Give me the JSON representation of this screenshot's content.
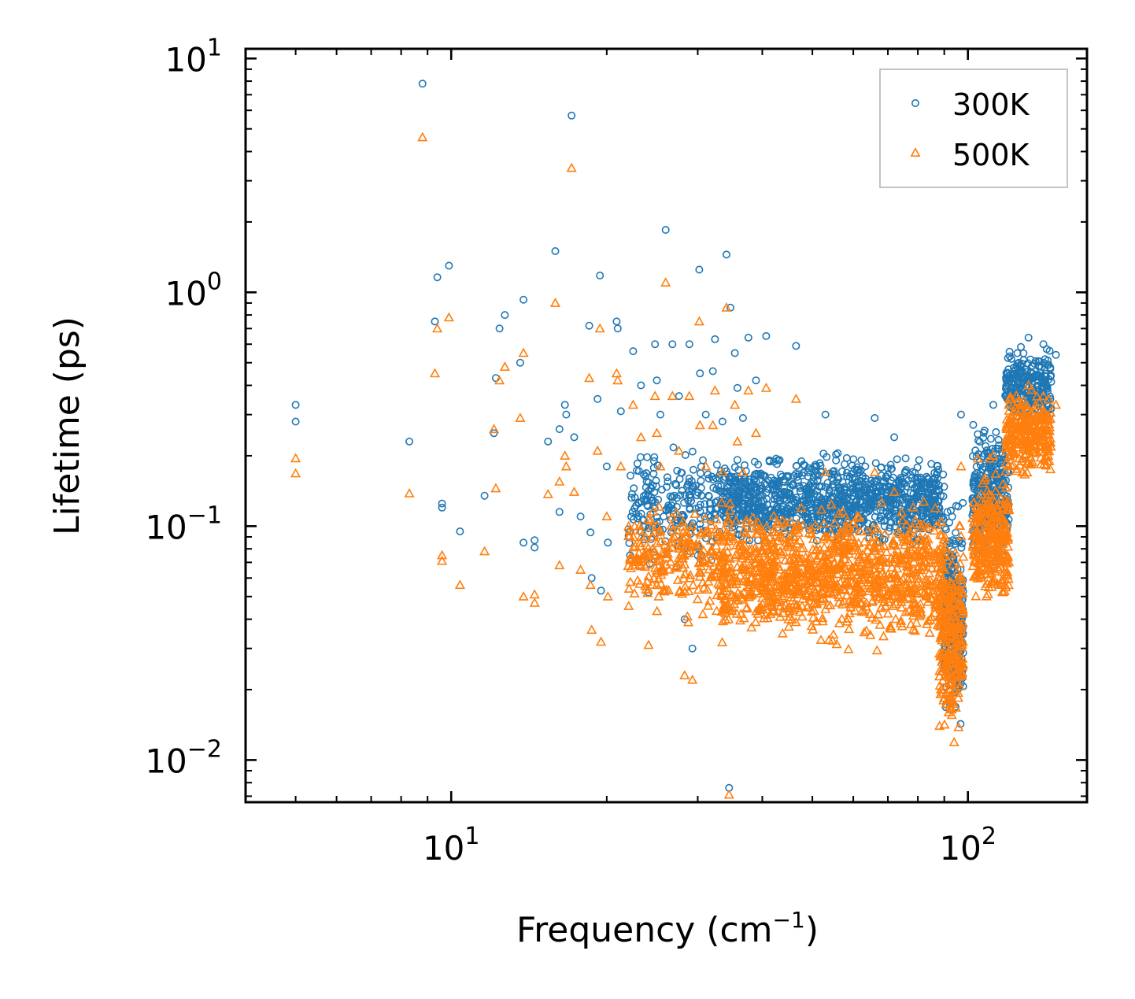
{
  "chart_data": {
    "type": "scatter",
    "xlabel": "Frequency (cm⁻¹)",
    "xlabel_parts": {
      "base": "Frequency (cm",
      "sup": "−1",
      "close": ")"
    },
    "ylabel": "Lifetime (ps)",
    "xscale": "log",
    "yscale": "log",
    "xlim": [
      4.0,
      170.0
    ],
    "ylim": [
      0.0066,
      11.0
    ],
    "xticks": [
      {
        "value": 10,
        "base": "10",
        "exp": "1"
      },
      {
        "value": 100,
        "base": "10",
        "exp": "2"
      }
    ],
    "yticks": [
      {
        "value": 0.01,
        "base": "10",
        "exp": "−2"
      },
      {
        "value": 0.1,
        "base": "10",
        "exp": "−1"
      },
      {
        "value": 1,
        "base": "10",
        "exp": "0"
      },
      {
        "value": 10,
        "base": "10",
        "exp": "1"
      }
    ],
    "legend_position": "top-right",
    "series": [
      {
        "name": "300K",
        "marker": "circle-open",
        "color": "#1f77b4",
        "points": [
          [
            5.0,
            0.33
          ],
          [
            5.0,
            0.28
          ],
          [
            8.3,
            0.23
          ],
          [
            8.8,
            7.8
          ],
          [
            9.3,
            0.75
          ],
          [
            9.4,
            1.16
          ],
          [
            9.6,
            0.125
          ],
          [
            9.6,
            0.12
          ],
          [
            9.9,
            1.3
          ],
          [
            10.4,
            0.095
          ],
          [
            11.6,
            0.135
          ],
          [
            12.1,
            0.25
          ],
          [
            12.2,
            0.43
          ],
          [
            12.4,
            0.7
          ],
          [
            12.7,
            0.8
          ],
          [
            13.6,
            0.5
          ],
          [
            13.8,
            0.93
          ],
          [
            13.8,
            0.085
          ],
          [
            14.5,
            0.087
          ],
          [
            14.5,
            0.081
          ],
          [
            15.4,
            0.23
          ],
          [
            15.9,
            1.5
          ],
          [
            16.2,
            0.26
          ],
          [
            16.2,
            0.115
          ],
          [
            16.6,
            0.33
          ],
          [
            16.7,
            0.3
          ],
          [
            17.1,
            5.7
          ],
          [
            17.3,
            0.24
          ],
          [
            17.8,
            0.11
          ],
          [
            18.5,
            0.72
          ],
          [
            18.6,
            0.094
          ],
          [
            18.7,
            0.06
          ],
          [
            19.2,
            0.35
          ],
          [
            19.4,
            1.18
          ],
          [
            19.5,
            0.053
          ],
          [
            20.0,
            0.18
          ],
          [
            20.1,
            0.085
          ],
          [
            20.9,
            0.75
          ],
          [
            21.0,
            0.7
          ],
          [
            21.3,
            0.31
          ],
          [
            22.5,
            0.56
          ],
          [
            23.3,
            0.4
          ],
          [
            24.1,
            0.052
          ],
          [
            24.8,
            0.6
          ],
          [
            25.0,
            0.42
          ],
          [
            25.4,
            0.3
          ],
          [
            26.0,
            1.85
          ],
          [
            26.8,
            0.6
          ],
          [
            27.6,
            0.36
          ],
          [
            28.3,
            0.04
          ],
          [
            28.9,
            0.6
          ],
          [
            29.3,
            0.03
          ],
          [
            30.2,
            1.25
          ],
          [
            30.3,
            0.45
          ],
          [
            30.7,
            0.07
          ],
          [
            31.1,
            0.3
          ],
          [
            32.1,
            0.46
          ],
          [
            32.4,
            0.63
          ],
          [
            33.5,
            0.28
          ],
          [
            34.1,
            1.45
          ],
          [
            34.5,
            0.0076
          ],
          [
            34.7,
            0.86
          ],
          [
            35.4,
            0.55
          ],
          [
            35.8,
            0.39
          ],
          [
            36.7,
            0.29
          ],
          [
            37.6,
            0.64
          ],
          [
            38.9,
            0.42
          ],
          [
            40.7,
            0.65
          ],
          [
            46.5,
            0.59
          ],
          [
            53.0,
            0.3
          ],
          [
            66.0,
            0.29
          ],
          [
            72.0,
            0.24
          ],
          [
            97.0,
            0.3
          ],
          [
            112.0,
            0.33
          ],
          [
            131.0,
            0.64
          ],
          [
            140.0,
            0.6
          ],
          [
            148.0,
            0.54
          ]
        ],
        "clusters": [
          {
            "x": [
              22.0,
              33.0
            ],
            "y": [
              0.06,
              0.25
            ],
            "n": 220
          },
          {
            "x": [
              33.0,
              90.0
            ],
            "y": [
              0.075,
              0.22
            ],
            "n": 1100
          },
          {
            "x": [
              90.0,
              98.0
            ],
            "y": [
              0.012,
              0.16
            ],
            "n": 260
          },
          {
            "x": [
              102.0,
              120.0
            ],
            "y": [
              0.06,
              0.32
            ],
            "n": 300
          },
          {
            "x": [
              118.0,
              145.0
            ],
            "y": [
              0.25,
              0.62
            ],
            "n": 260
          }
        ]
      },
      {
        "name": "500K",
        "marker": "triangle-open",
        "color": "#ff7f0e",
        "points": [
          [
            5.0,
            0.195
          ],
          [
            5.0,
            0.168
          ],
          [
            8.3,
            0.138
          ],
          [
            8.8,
            4.6
          ],
          [
            9.3,
            0.45
          ],
          [
            9.4,
            0.7
          ],
          [
            9.6,
            0.075
          ],
          [
            9.6,
            0.071
          ],
          [
            9.9,
            0.78
          ],
          [
            10.4,
            0.056
          ],
          [
            11.6,
            0.078
          ],
          [
            12.1,
            0.26
          ],
          [
            12.2,
            0.145
          ],
          [
            12.4,
            0.42
          ],
          [
            12.7,
            0.48
          ],
          [
            13.6,
            0.29
          ],
          [
            13.8,
            0.55
          ],
          [
            13.8,
            0.05
          ],
          [
            14.5,
            0.051
          ],
          [
            14.5,
            0.047
          ],
          [
            15.4,
            0.137
          ],
          [
            15.9,
            0.9
          ],
          [
            16.2,
            0.155
          ],
          [
            16.2,
            0.068
          ],
          [
            16.6,
            0.2
          ],
          [
            16.7,
            0.18
          ],
          [
            17.1,
            3.4
          ],
          [
            17.3,
            0.14
          ],
          [
            17.8,
            0.065
          ],
          [
            18.5,
            0.43
          ],
          [
            18.6,
            0.056
          ],
          [
            18.7,
            0.036
          ],
          [
            19.2,
            0.21
          ],
          [
            19.4,
            0.7
          ],
          [
            19.5,
            0.032
          ],
          [
            20.0,
            0.11
          ],
          [
            20.1,
            0.05
          ],
          [
            20.9,
            0.45
          ],
          [
            21.0,
            0.42
          ],
          [
            21.3,
            0.18
          ],
          [
            22.5,
            0.33
          ],
          [
            23.3,
            0.24
          ],
          [
            24.1,
            0.031
          ],
          [
            24.8,
            0.36
          ],
          [
            25.0,
            0.25
          ],
          [
            25.4,
            0.18
          ],
          [
            26.0,
            1.1
          ],
          [
            26.8,
            0.36
          ],
          [
            27.6,
            0.21
          ],
          [
            28.3,
            0.023
          ],
          [
            28.9,
            0.36
          ],
          [
            29.3,
            0.022
          ],
          [
            30.2,
            0.75
          ],
          [
            30.3,
            0.27
          ],
          [
            30.7,
            0.042
          ],
          [
            31.1,
            0.18
          ],
          [
            32.1,
            0.27
          ],
          [
            32.4,
            0.38
          ],
          [
            33.5,
            0.17
          ],
          [
            34.1,
            0.86
          ],
          [
            34.5,
            0.0071
          ],
          [
            35.4,
            0.33
          ],
          [
            35.8,
            0.23
          ],
          [
            36.7,
            0.17
          ],
          [
            37.6,
            0.38
          ],
          [
            38.9,
            0.25
          ],
          [
            40.7,
            0.39
          ],
          [
            46.5,
            0.35
          ],
          [
            53.0,
            0.17
          ],
          [
            66.0,
            0.17
          ],
          [
            72.0,
            0.14
          ],
          [
            97.0,
            0.18
          ],
          [
            112.0,
            0.2
          ],
          [
            131.0,
            0.4
          ],
          [
            140.0,
            0.36
          ],
          [
            148.0,
            0.33
          ]
        ],
        "clusters": [
          {
            "x": [
              22.0,
              33.0
            ],
            "y": [
              0.035,
              0.15
            ],
            "n": 220
          },
          {
            "x": [
              33.0,
              90.0
            ],
            "y": [
              0.028,
              0.14
            ],
            "n": 1100
          },
          {
            "x": [
              88.0,
              98.0
            ],
            "y": [
              0.0095,
              0.13
            ],
            "n": 260
          },
          {
            "x": [
              102.0,
              120.0
            ],
            "y": [
              0.04,
              0.2
            ],
            "n": 300
          },
          {
            "x": [
              118.0,
              145.0
            ],
            "y": [
              0.15,
              0.42
            ],
            "n": 260
          }
        ]
      }
    ]
  }
}
